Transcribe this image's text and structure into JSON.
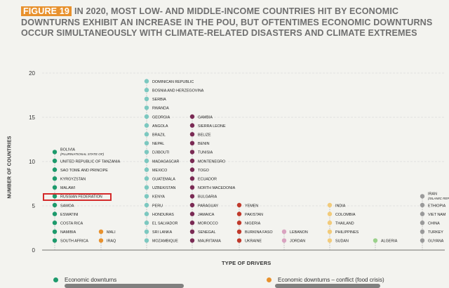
{
  "header": {
    "badge": "FIGURE 19",
    "title": "IN 2020, MOST LOW- AND MIDDLE-INCOME COUNTRIES HIT BY ECONOMIC DOWNTURNS EXHIBIT AN INCREASE IN THE PoU, BUT OFTENTIMES ECONOMIC DOWNTURNS OCCUR SIMULTANEOUSLY WITH CLIMATE-RELATED DISASTERS AND CLIMATE EXTREMES"
  },
  "legend": [
    {
      "label": "Economic downturns",
      "color": "#1d9a6c"
    },
    {
      "label": "Economic downturns – conflict (food crisis)",
      "color": "#e8912d"
    }
  ],
  "highlight": "RUSSIAN FEDERATION",
  "chart_data": {
    "type": "scatter",
    "xlabel": "TYPE OF DRIVERS",
    "ylabel": "NUMBER OF COUNTRIES",
    "ylim": [
      0,
      20
    ],
    "yticks": [
      0,
      5,
      10,
      15,
      20
    ],
    "grid": true,
    "columns": [
      {
        "color": "#1d9a6c",
        "countries": [
          "SOUTH AFRICA",
          "NAMIBIA",
          "COSTA RICA",
          "ESWATINI",
          "SAMOA",
          "RUSSIAN FEDERATION",
          "MALAWI",
          "KYRGYZSTAN",
          "SAO TOME AND PRINCIPE",
          "UNITED REPUBLIC OF TANZANIA",
          "BOLIVIA"
        ],
        "top_sublabel": "(PLURINATIONAL STATE OF)"
      },
      {
        "color": "#e8912d",
        "countries": [
          "IRAQ",
          "MALI"
        ]
      },
      {
        "color": "#7cc8c0",
        "countries": [
          "MOZAMBIQUE",
          "SRI LANKA",
          "EL SALVADOR",
          "HONDURAS",
          "PERU",
          "KENYA",
          "UZBEKISTAN",
          "GUATEMALA",
          "MEXICO",
          "MADAGASCAR",
          "DJIBOUTI",
          "NEPAL",
          "BRAZIL",
          "ANGOLA",
          "GEORGIA",
          "RWANDA",
          "SERBIA",
          "BOSNIA AND HERZEGOVINA",
          "DOMINICAN REPUBLIC"
        ]
      },
      {
        "color": "#7a2a54",
        "countries": [
          "MAURITANIA",
          "SENEGAL",
          "MOROCCO",
          "JAMAICA",
          "PARAGUAY",
          "BULGARIA",
          "NORTH MACEDONIA",
          "ECUADOR",
          "TOGO",
          "MONTENEGRO",
          "TUNISIA",
          "BENIN",
          "BELIZE",
          "SIERRA LEONE",
          "GAMBIA"
        ]
      },
      {
        "color": "#c0392b",
        "countries": [
          "UKRAINE",
          "BURKINA FASO",
          "NIGERIA",
          "PAKISTAN",
          "YEMEN"
        ]
      },
      {
        "color": "#d9a3c0",
        "countries": [
          "JORDAN",
          "LEBANON"
        ]
      },
      {
        "color": "#f2cb7a",
        "countries": [
          "SUDAN",
          "PHILIPPINES",
          "THAILAND",
          "COLOMBIA",
          "INDIA"
        ]
      },
      {
        "color": "#9bd18b",
        "countries": [
          "ALGERIA"
        ]
      },
      {
        "color": "#9a9a9a",
        "countries": [
          "GUYANA",
          "TURKEY",
          "CHINA",
          "VIET NAM",
          "ETHIOPIA",
          "IRAN"
        ],
        "top_sublabel": "(ISLAMIC REPUBLIC OF)"
      }
    ]
  }
}
